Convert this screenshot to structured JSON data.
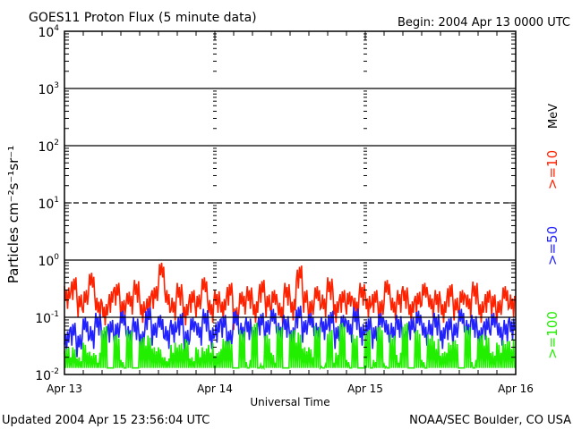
{
  "chart_data": {
    "type": "line",
    "title": "GOES11 Proton Flux (5 minute data)",
    "begin_label": "Begin: 2004 Apr 13 0000 UTC",
    "xlabel": "Universal Time",
    "ylabel": "Particles cm⁻²s⁻¹sr⁻¹",
    "x_ticks": [
      "Apr 13",
      "Apr 14",
      "Apr 15",
      "Apr 16"
    ],
    "x_range_hours": [
      0,
      72
    ],
    "y_scale": "log",
    "ylim": [
      0.01,
      10000
    ],
    "y_ticks": [
      {
        "base": "10",
        "exp": "4"
      },
      {
        "base": "10",
        "exp": "3"
      },
      {
        "base": "10",
        "exp": "2"
      },
      {
        "base": "10",
        "exp": "1"
      },
      {
        "base": "10",
        "exp": "0"
      },
      {
        "base": "10",
        "exp": "-1"
      },
      {
        "base": "10",
        "exp": "-2"
      }
    ],
    "unit_label": "MeV",
    "series": [
      {
        "name": ">=10",
        "color": "#ff2200",
        "values": [
          0.35,
          0.5,
          0.25,
          0.3,
          0.6,
          0.22,
          0.18,
          0.3,
          0.4,
          0.2,
          0.28,
          0.45,
          0.2,
          0.25,
          0.35,
          0.9,
          0.3,
          0.22,
          0.4,
          0.18,
          0.3,
          0.25,
          0.5,
          0.2,
          0.3,
          0.22,
          0.4,
          0.15,
          0.28,
          0.35,
          0.2,
          0.45,
          0.25,
          0.3,
          0.18,
          0.4,
          0.22,
          0.8,
          0.3,
          0.2,
          0.35,
          0.25,
          0.5,
          0.2,
          0.3,
          0.28,
          0.22,
          0.4,
          0.25,
          0.3,
          0.2,
          0.45,
          0.22,
          0.3,
          0.35,
          0.2,
          0.28,
          0.4,
          0.25,
          0.3,
          0.2,
          0.38,
          0.22,
          0.3,
          0.25,
          0.42,
          0.2,
          0.3,
          0.25,
          0.2,
          0.35,
          0.25
        ]
      },
      {
        "name": ">=50",
        "color": "#2222ff",
        "values": [
          0.06,
          0.08,
          0.05,
          0.1,
          0.07,
          0.12,
          0.06,
          0.09,
          0.08,
          0.13,
          0.07,
          0.1,
          0.06,
          0.15,
          0.08,
          0.11,
          0.07,
          0.09,
          0.12,
          0.06,
          0.1,
          0.08,
          0.14,
          0.07,
          0.09,
          0.11,
          0.06,
          0.13,
          0.08,
          0.1,
          0.07,
          0.12,
          0.09,
          0.14,
          0.08,
          0.11,
          0.07,
          0.16,
          0.09,
          0.12,
          0.08,
          0.1,
          0.13,
          0.07,
          0.11,
          0.09,
          0.15,
          0.08,
          0.1,
          0.07,
          0.12,
          0.09,
          0.08,
          0.11,
          0.06,
          0.1,
          0.13,
          0.08,
          0.09,
          0.12,
          0.07,
          0.1,
          0.08,
          0.14,
          0.09,
          0.11,
          0.07,
          0.1,
          0.12,
          0.08,
          0.09,
          0.1
        ]
      },
      {
        "name": ">=100",
        "color": "#22ee00",
        "values": [
          0.03,
          0.05,
          0.02,
          0.06,
          0.025,
          0.04,
          0.07,
          0.02,
          0.05,
          0.03,
          0.06,
          0.02,
          0.045,
          0.08,
          0.03,
          0.05,
          0.02,
          0.06,
          0.035,
          0.07,
          0.02,
          0.05,
          0.03,
          0.06,
          0.025,
          0.07,
          0.04,
          0.02,
          0.06,
          0.03,
          0.08,
          0.025,
          0.05,
          0.04,
          0.07,
          0.02,
          0.06,
          0.09,
          0.03,
          0.05,
          0.07,
          0.025,
          0.06,
          0.04,
          0.08,
          0.03,
          0.05,
          0.02,
          0.06,
          0.03,
          0.07,
          0.025,
          0.05,
          0.04,
          0.08,
          0.02,
          0.06,
          0.03,
          0.05,
          0.07,
          0.025,
          0.06,
          0.04,
          0.02,
          0.07,
          0.03,
          0.05,
          0.08,
          0.025,
          0.06,
          0.04,
          0.07
        ]
      }
    ]
  },
  "footer": {
    "updated": "Updated 2004 Apr 15 23:56:04 UTC",
    "credit": "NOAA/SEC Boulder, CO USA"
  }
}
